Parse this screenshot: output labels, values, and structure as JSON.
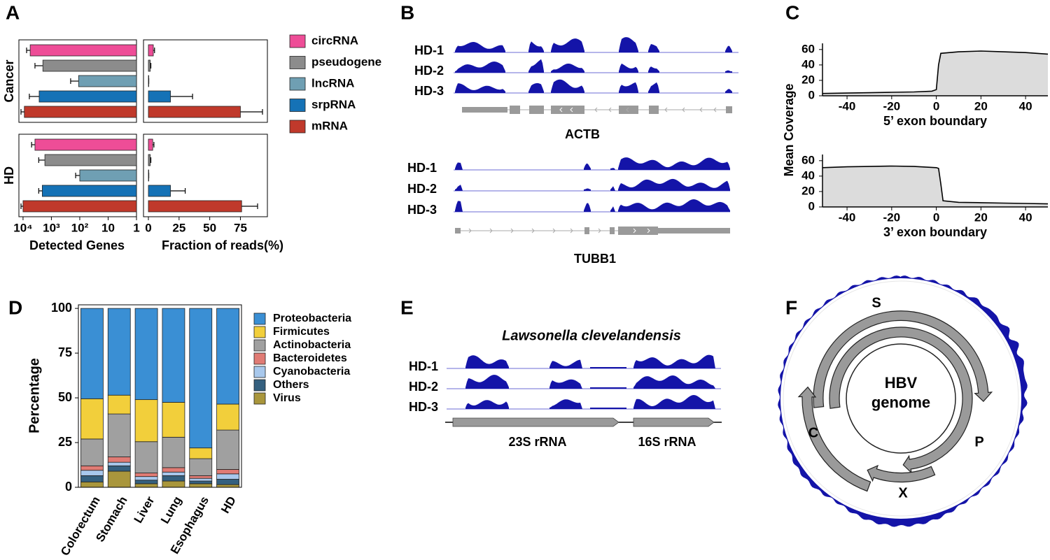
{
  "panel_labels": [
    "A",
    "B",
    "C",
    "D",
    "E",
    "F"
  ],
  "chart_data": [
    {
      "type": "hbar",
      "categories": [
        "circRNA",
        "pseudogene",
        "lncRNA",
        "srpRNA",
        "mRNA"
      ],
      "colors": [
        "#ee4d97",
        "#8c8c8c",
        "#6f9fb3",
        "#1572b6",
        "#c0392b"
      ],
      "groups": [
        {
          "label": "Cancer",
          "genes": [
            5600,
            2000,
            110,
            2700,
            9000
          ],
          "genes_error": [
            1900,
            1800,
            100,
            3300,
            2800
          ],
          "fraction": [
            4,
            1.5,
            0.3,
            18,
            75
          ],
          "fraction_error": [
            1,
            0.5,
            0,
            18,
            18
          ]
        },
        {
          "label": "HD",
          "genes": [
            3800,
            1700,
            100,
            2100,
            10000
          ],
          "genes_error": [
            1200,
            1100,
            40,
            700,
            1800
          ],
          "fraction": [
            3.5,
            1.5,
            0.3,
            18,
            76
          ],
          "fraction_error": [
            1,
            0.5,
            0,
            12,
            13
          ]
        }
      ],
      "genes_axis": {
        "label": "Detected Genes",
        "log": true,
        "xlim": [
          14000,
          1
        ],
        "xticks": [
          {
            "value": 10000,
            "label": "10⁴"
          },
          {
            "value": 1000,
            "label": "10³"
          },
          {
            "value": 100,
            "label": "10²"
          },
          10,
          1
        ]
      },
      "fraction_axis": {
        "label": "Fraction of reads(%)",
        "xlim": [
          -4,
          97
        ],
        "xticks": [
          0,
          25,
          50,
          75
        ]
      }
    },
    {
      "type": "area",
      "ylabel": "Mean Coverage",
      "xlim": [
        -51,
        50
      ],
      "ylim": [
        0,
        68
      ],
      "xticks": [
        -40,
        -20,
        0,
        20,
        40
      ],
      "yticks": [
        0,
        20,
        40,
        60
      ],
      "color": "#dcdcdc",
      "panels": [
        {
          "xlabel": "5’ exon boundary",
          "x": [
            -51,
            -40,
            -30,
            -20,
            -10,
            -2,
            0,
            1,
            2,
            10,
            20,
            30,
            40,
            50
          ],
          "values": [
            3,
            3.5,
            4,
            4.5,
            5,
            6,
            8,
            40,
            55,
            57,
            58,
            57,
            56,
            54
          ]
        },
        {
          "xlabel": "3’ exon boundary",
          "x": [
            -51,
            -40,
            -30,
            -20,
            -10,
            0,
            1,
            2,
            3,
            10,
            20,
            30,
            40,
            50
          ],
          "values": [
            51,
            52,
            52.5,
            53,
            52.5,
            51,
            50,
            30,
            8,
            6,
            5.5,
            5,
            4.5,
            4
          ]
        }
      ]
    },
    {
      "type": "stacked",
      "ylabel": "Percentage",
      "categories": [
        "Colorectum",
        "Stomach",
        "Liver",
        "Lung",
        "Esophagus",
        "HD"
      ],
      "ylim": [
        0,
        102
      ],
      "yticks": [
        0,
        25,
        50,
        75,
        100
      ],
      "series": [
        {
          "name": "Proteobacteria",
          "color": "#3a8fd4",
          "values": [
            50.5,
            48.5,
            51,
            52.5,
            78,
            53.5
          ]
        },
        {
          "name": "Firmicutes",
          "color": "#f2cf3b",
          "values": [
            22.5,
            10.5,
            23.5,
            19.5,
            6,
            14.5
          ]
        },
        {
          "name": "Actinobacteria",
          "color": "#a0a0a0",
          "values": [
            15,
            24,
            17.5,
            17,
            9.5,
            22
          ]
        },
        {
          "name": "Bacteroidetes",
          "color": "#e07b74",
          "values": [
            2.5,
            3,
            2,
            2.5,
            1.5,
            2.5
          ]
        },
        {
          "name": "Cyanobacteria",
          "color": "#a8c8ec",
          "values": [
            3,
            2,
            2,
            2,
            1.5,
            3
          ]
        },
        {
          "name": "Others",
          "color": "#34607f",
          "values": [
            3.5,
            3,
            2,
            3,
            1.5,
            3
          ]
        },
        {
          "name": "Virus",
          "color": "#a9963c",
          "values": [
            3,
            9,
            2,
            3.5,
            2,
            1.5
          ]
        }
      ]
    }
  ],
  "panel_b": {
    "tracks": [
      "HD-1",
      "HD-2",
      "HD-3"
    ],
    "genes": [
      "ACTB",
      "TUBB1"
    ]
  },
  "panel_e": {
    "organism": "Lawsonella clevelandensis",
    "tracks": [
      "HD-1",
      "HD-2",
      "HD-3"
    ],
    "genes": [
      "23S rRNA",
      "16S rRNA"
    ]
  },
  "panel_f": {
    "center": [
      "HBV",
      "genome"
    ],
    "orfs": [
      "S",
      "P",
      "X",
      "C"
    ]
  }
}
